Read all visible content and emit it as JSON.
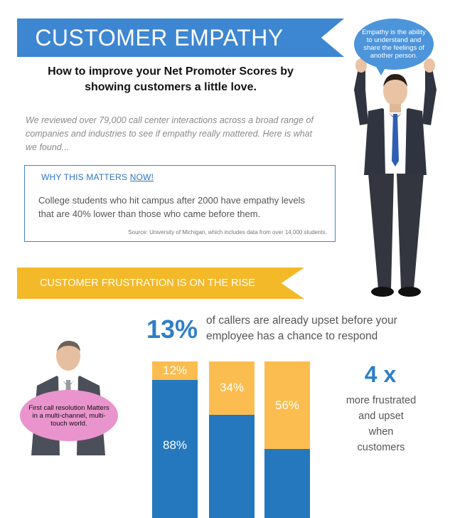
{
  "header": {
    "title": "CUSTOMER EMPATHY",
    "subtitle": "How to improve your Net Promoter Scores by showing customers a little love."
  },
  "intro": "We reviewed over 79,000 call center interactions across a broad range of companies and industries to see if empathy really mattered. Here is what we found...",
  "matters": {
    "title_prefix": "WHY THIS MATTERS ",
    "title_emph": "NOW!",
    "body": "College students who hit campus after 2000 have empathy levels that are 40% lower than those who came before them.",
    "source": "Source:  University of Michigan, which includes data from over 14,000 students."
  },
  "bubble": {
    "text": "Empathy is the ability to understand and share the feelings of another person."
  },
  "frustration": {
    "title": "CUSTOMER FRUSTRATION IS ON THE RISE",
    "stat_value": "13%",
    "stat_text": "of callers are already upset before your employee has a chance to respond"
  },
  "chart_data": {
    "type": "bar",
    "stacked": true,
    "series": [
      {
        "values": [
          12,
          34,
          56
        ],
        "labels": [
          "12%",
          "34%",
          "56%"
        ],
        "color": "#fbbd4f"
      },
      {
        "values": [
          88,
          66,
          44
        ],
        "labels": [
          "88%",
          "",
          ""
        ],
        "color": "#2578bd"
      }
    ]
  },
  "multiplier": {
    "value": "4 x",
    "text": "more frustrated and upset when customers"
  },
  "pink_bubble": {
    "text": "First call resolution Matters in a multi-channel, multi-touch world."
  },
  "colors": {
    "brand_blue": "#3d86d2",
    "accent_yellow": "#f4b928",
    "stat_blue": "#2f7fc8"
  }
}
